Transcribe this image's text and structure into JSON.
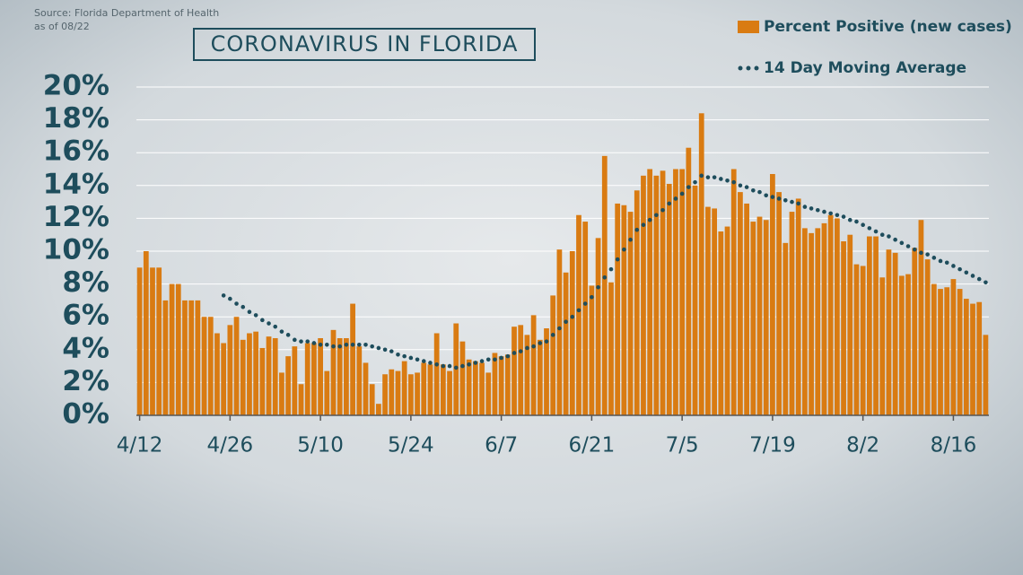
{
  "source": "Source: Florida Department of Health",
  "as_of": "as of 08/22",
  "chart_data": {
    "type": "bar",
    "title": "CORONAVIRUS IN FLORIDA",
    "categories": [
      "4/12",
      null,
      null,
      null,
      null,
      null,
      null,
      null,
      null,
      null,
      null,
      null,
      null,
      null,
      "4/26",
      null,
      null,
      null,
      null,
      null,
      null,
      null,
      null,
      null,
      null,
      null,
      null,
      null,
      "5/10",
      null,
      null,
      null,
      null,
      null,
      null,
      null,
      null,
      null,
      null,
      null,
      null,
      null,
      "5/24",
      null,
      null,
      null,
      null,
      null,
      null,
      null,
      null,
      null,
      null,
      null,
      null,
      null,
      "6/7",
      null,
      null,
      null,
      null,
      null,
      null,
      null,
      null,
      null,
      null,
      null,
      null,
      null,
      "6/21",
      null,
      null,
      null,
      null,
      null,
      null,
      null,
      null,
      null,
      null,
      null,
      null,
      null,
      "7/5",
      null,
      null,
      null,
      null,
      null,
      null,
      null,
      null,
      null,
      null,
      null,
      null,
      null,
      "7/19",
      null,
      null,
      null,
      null,
      null,
      null,
      null,
      null,
      null,
      null,
      null,
      null,
      null,
      "8/2",
      null,
      null,
      null,
      null,
      null,
      null,
      null,
      null,
      null,
      null,
      null,
      null,
      null,
      "8/16",
      null,
      null,
      null,
      null,
      null
    ],
    "series": [
      {
        "name": "Percent Positive (new cases)",
        "type": "bar",
        "color": "#d97b12",
        "values": [
          9.0,
          10.0,
          9.0,
          9.0,
          7.0,
          8.0,
          8.0,
          7.0,
          7.0,
          7.0,
          6.0,
          6.0,
          5.0,
          4.4,
          5.5,
          6.0,
          4.6,
          5.0,
          5.1,
          4.1,
          4.8,
          4.7,
          2.6,
          3.6,
          4.2,
          1.9,
          4.4,
          4.4,
          4.7,
          2.7,
          5.2,
          4.7,
          4.7,
          6.8,
          4.2,
          3.2,
          1.9,
          0.7,
          2.5,
          2.8,
          2.7,
          3.3,
          2.5,
          2.6,
          3.2,
          3.1,
          5.0,
          3.1,
          2.7,
          5.6,
          4.5,
          3.4,
          3.3,
          3.2,
          2.6,
          3.8,
          3.6,
          3.7,
          5.4,
          5.5,
          4.9,
          6.1,
          4.6,
          5.3,
          7.3,
          10.1,
          8.7,
          10.0,
          12.2,
          11.8,
          7.9,
          10.8,
          15.8,
          8.1,
          12.9,
          12.8,
          12.4,
          13.7,
          14.6,
          15.0,
          14.6,
          14.9,
          14.1,
          15.0,
          15.0,
          16.3,
          14.0,
          18.4,
          12.7,
          12.6,
          11.2,
          11.5,
          15.0,
          13.6,
          12.9,
          11.8,
          12.1,
          11.9,
          14.7,
          13.6,
          10.5,
          12.4,
          13.2,
          11.4,
          11.1,
          11.4,
          11.7,
          12.2,
          12.0,
          10.6,
          11.0,
          9.2,
          9.1,
          10.9,
          10.9,
          8.4,
          10.1,
          9.9,
          8.5,
          8.6,
          10.2,
          11.9,
          9.5,
          8.0,
          7.7,
          7.8,
          8.3,
          7.7,
          7.1,
          6.8,
          6.9,
          4.9
        ]
      },
      {
        "name": "14 Day Moving Average",
        "type": "dotted-line",
        "color": "#1e4d5c",
        "values": [
          null,
          null,
          null,
          null,
          null,
          null,
          null,
          null,
          null,
          null,
          null,
          null,
          null,
          7.3,
          7.1,
          6.8,
          6.6,
          6.3,
          6.1,
          5.8,
          5.6,
          5.4,
          5.1,
          4.9,
          4.6,
          4.5,
          4.5,
          4.4,
          4.3,
          4.3,
          4.2,
          4.2,
          4.3,
          4.3,
          4.3,
          4.3,
          4.2,
          4.1,
          4.0,
          3.9,
          3.7,
          3.6,
          3.5,
          3.4,
          3.3,
          3.2,
          3.1,
          3.0,
          3.0,
          2.9,
          3.0,
          3.1,
          3.2,
          3.3,
          3.4,
          3.4,
          3.5,
          3.6,
          3.8,
          3.9,
          4.1,
          4.2,
          4.4,
          4.5,
          4.9,
          5.3,
          5.7,
          6.0,
          6.4,
          6.8,
          7.2,
          7.8,
          8.4,
          8.9,
          9.5,
          10.1,
          10.7,
          11.3,
          11.6,
          11.9,
          12.2,
          12.5,
          12.9,
          13.2,
          13.5,
          13.9,
          14.2,
          14.6,
          14.5,
          14.5,
          14.4,
          14.3,
          14.2,
          14.0,
          13.9,
          13.7,
          13.6,
          13.4,
          13.3,
          13.2,
          13.1,
          13.0,
          12.9,
          12.7,
          12.6,
          12.5,
          12.4,
          12.3,
          12.2,
          12.1,
          11.9,
          11.8,
          11.6,
          11.4,
          11.2,
          11.0,
          10.9,
          10.7,
          10.5,
          10.3,
          10.1,
          9.9,
          9.8,
          9.6,
          9.4,
          9.3,
          9.1,
          8.9,
          8.7,
          8.5,
          8.3,
          8.1
        ]
      }
    ],
    "ylim": [
      0,
      20
    ],
    "yticks": [
      {
        "value": 0,
        "label": "0%"
      },
      {
        "value": 2,
        "label": "2%"
      },
      {
        "value": 4,
        "label": "4%"
      },
      {
        "value": 6,
        "label": "6%"
      },
      {
        "value": 8,
        "label": "8%"
      },
      {
        "value": 10,
        "label": "10%"
      },
      {
        "value": 12,
        "label": "12%"
      },
      {
        "value": 14,
        "label": "14%"
      },
      {
        "value": 16,
        "label": "16%"
      },
      {
        "value": 18,
        "label": "18%"
      },
      {
        "value": 20,
        "label": "20%"
      }
    ],
    "grid": true,
    "legend": "top-right"
  }
}
